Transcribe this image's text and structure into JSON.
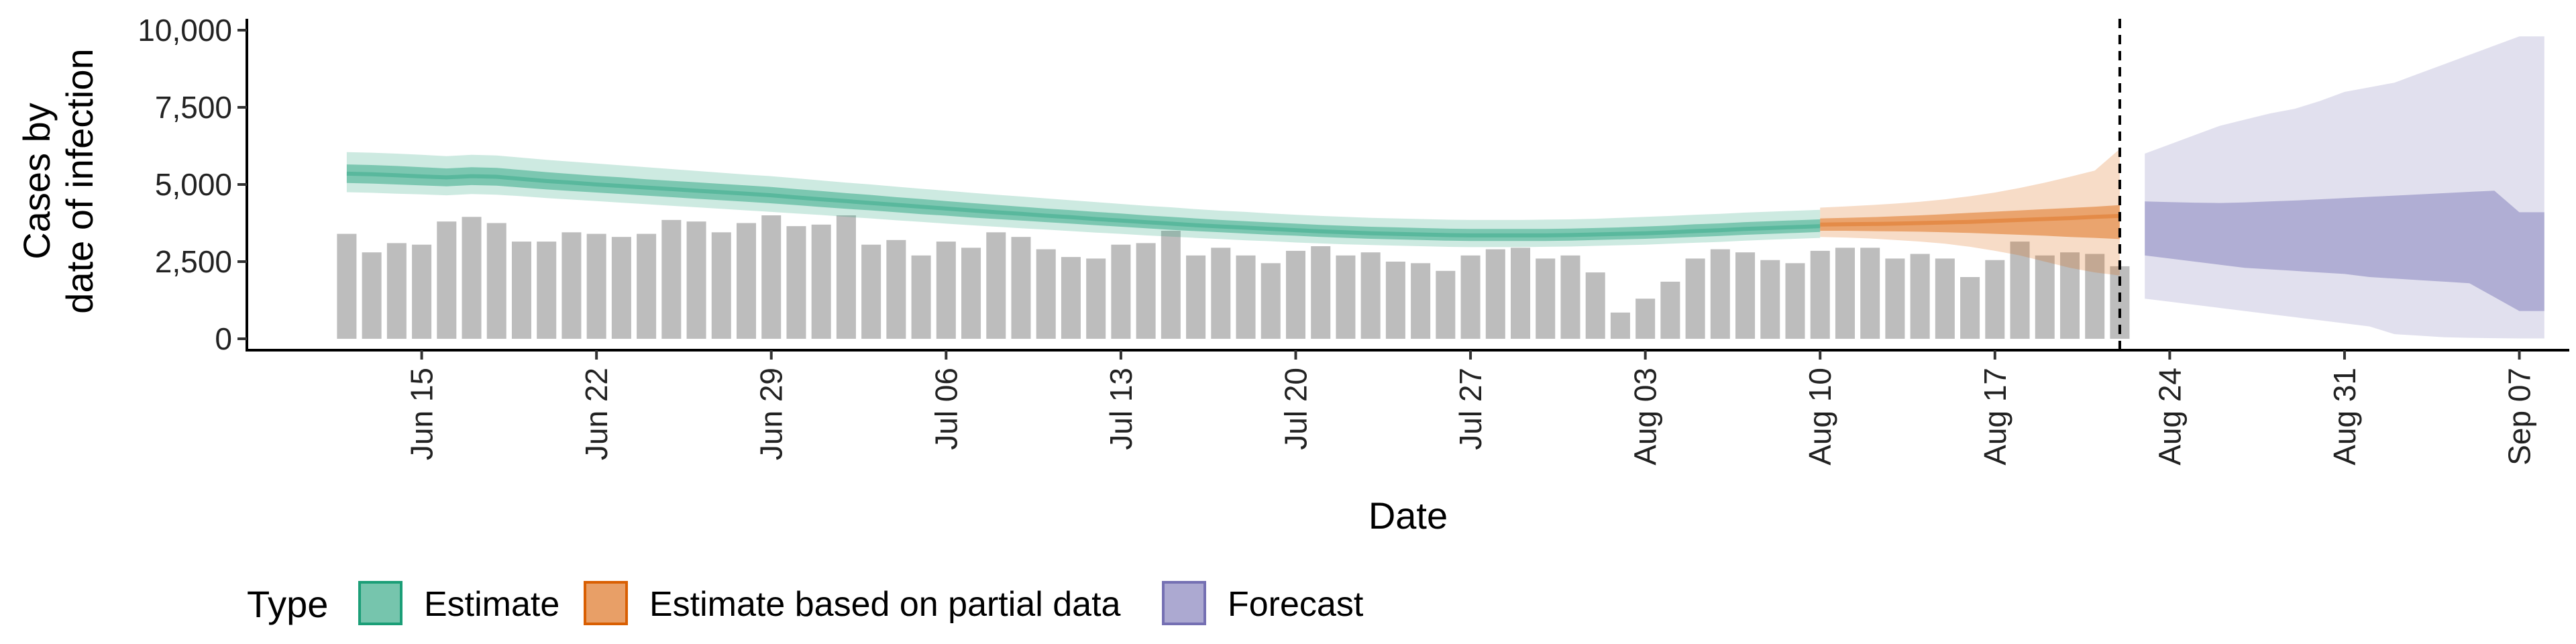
{
  "chart_data": {
    "type": "bar",
    "xlabel": "Date",
    "ylabel_lines": [
      "Cases by",
      "date of infection"
    ],
    "ylim": [
      0,
      10000
    ],
    "x_range": [
      "2020-06-08",
      "2020-09-09"
    ],
    "x_ticks": [
      "2020-06-15",
      "2020-06-22",
      "2020-06-29",
      "2020-07-06",
      "2020-07-13",
      "2020-07-20",
      "2020-07-27",
      "2020-08-03",
      "2020-08-10",
      "2020-08-17",
      "2020-08-24",
      "2020-08-31",
      "2020-09-07"
    ],
    "x_tick_labels": [
      "Jun 15",
      "Jun 22",
      "Jun 29",
      "Jul 06",
      "Jul 13",
      "Jul 20",
      "Jul 27",
      "Aug 03",
      "Aug 10",
      "Aug 17",
      "Aug 24",
      "Aug 31",
      "Sep 07"
    ],
    "y_ticks": [
      0,
      2500,
      5000,
      7500,
      10000
    ],
    "y_tick_labels": [
      "0",
      "2,500",
      "5,000",
      "7,500",
      "10,000"
    ],
    "grid": false,
    "legend_position": "bottom",
    "legend": {
      "title": "Type",
      "items": [
        {
          "label": "Estimate",
          "color": "#1b9e77"
        },
        {
          "label": "Estimate based on partial data",
          "color": "#d95f02"
        },
        {
          "label": "Forecast",
          "color": "#7570b3"
        }
      ]
    },
    "cutoff_date": "2020-08-22",
    "bars": {
      "color": "#bdbdbd",
      "start": "2020-06-12",
      "values": [
        3400,
        2800,
        3100,
        3050,
        3800,
        3950,
        3750,
        3150,
        3150,
        3450,
        3400,
        3300,
        3400,
        3850,
        3800,
        3450,
        3750,
        4000,
        3650,
        3700,
        4000,
        3050,
        3200,
        2700,
        3150,
        2950,
        3450,
        3300,
        2900,
        2650,
        2600,
        3050,
        3100,
        3500,
        2700,
        2950,
        2700,
        2450,
        2850,
        3000,
        2700,
        2800,
        2500,
        2450,
        2200,
        2700,
        2900,
        2950,
        2600,
        2700,
        2150,
        850,
        1300,
        1850,
        2600,
        2900,
        2800,
        2550,
        2450,
        2850,
        2950,
        2950,
        2600,
        2750,
        2600,
        2000,
        2550,
        3150,
        2700,
        2800,
        2750,
        2350
      ]
    },
    "series": [
      {
        "name": "Estimate",
        "start": "2020-06-12",
        "median": [
          5350,
          5330,
          5300,
          5260,
          5230,
          5270,
          5250,
          5180,
          5110,
          5060,
          5000,
          4950,
          4900,
          4850,
          4800,
          4750,
          4700,
          4650,
          4580,
          4520,
          4460,
          4400,
          4340,
          4280,
          4220,
          4160,
          4100,
          4050,
          3990,
          3940,
          3880,
          3830,
          3780,
          3730,
          3680,
          3640,
          3600,
          3560,
          3520,
          3480,
          3450,
          3420,
          3400,
          3380,
          3360,
          3350,
          3350,
          3350,
          3350,
          3360,
          3380,
          3400,
          3420,
          3450,
          3490,
          3520,
          3560,
          3590,
          3620,
          3650
        ],
        "lower50": [
          5050,
          5030,
          5000,
          4970,
          4940,
          4980,
          4960,
          4900,
          4840,
          4790,
          4740,
          4690,
          4640,
          4590,
          4540,
          4490,
          4440,
          4390,
          4330,
          4270,
          4210,
          4160,
          4100,
          4040,
          3990,
          3930,
          3880,
          3830,
          3780,
          3730,
          3680,
          3630,
          3580,
          3530,
          3490,
          3450,
          3410,
          3370,
          3340,
          3300,
          3270,
          3240,
          3220,
          3200,
          3180,
          3170,
          3170,
          3170,
          3170,
          3180,
          3200,
          3220,
          3240,
          3270,
          3300,
          3330,
          3370,
          3400,
          3430,
          3460
        ],
        "upper50": [
          5650,
          5630,
          5600,
          5560,
          5520,
          5560,
          5540,
          5470,
          5400,
          5340,
          5280,
          5230,
          5170,
          5120,
          5070,
          5020,
          4970,
          4920,
          4850,
          4790,
          4720,
          4660,
          4590,
          4530,
          4460,
          4400,
          4340,
          4280,
          4220,
          4170,
          4110,
          4060,
          4000,
          3950,
          3900,
          3850,
          3810,
          3770,
          3730,
          3690,
          3660,
          3630,
          3610,
          3590,
          3570,
          3560,
          3560,
          3560,
          3560,
          3570,
          3590,
          3610,
          3640,
          3670,
          3710,
          3740,
          3780,
          3810,
          3840,
          3870
        ],
        "lower90": [
          4750,
          4730,
          4700,
          4680,
          4650,
          4690,
          4670,
          4620,
          4560,
          4510,
          4460,
          4410,
          4360,
          4310,
          4260,
          4210,
          4160,
          4110,
          4060,
          4010,
          3950,
          3900,
          3840,
          3790,
          3730,
          3680,
          3630,
          3580,
          3540,
          3490,
          3440,
          3400,
          3350,
          3310,
          3270,
          3230,
          3190,
          3160,
          3120,
          3090,
          3060,
          3040,
          3020,
          3000,
          2980,
          2970,
          2970,
          2970,
          2980,
          2990,
          3010,
          3030,
          3050,
          3080,
          3110,
          3140,
          3180,
          3210,
          3240,
          3270
        ],
        "upper90": [
          6050,
          6030,
          6000,
          5960,
          5920,
          5960,
          5940,
          5870,
          5800,
          5740,
          5680,
          5620,
          5560,
          5500,
          5440,
          5380,
          5320,
          5270,
          5200,
          5130,
          5060,
          5000,
          4930,
          4860,
          4800,
          4730,
          4670,
          4610,
          4550,
          4490,
          4430,
          4370,
          4310,
          4260,
          4200,
          4150,
          4110,
          4060,
          4020,
          3980,
          3950,
          3920,
          3900,
          3880,
          3860,
          3850,
          3850,
          3850,
          3860,
          3870,
          3890,
          3920,
          3950,
          3980,
          4020,
          4050,
          4090,
          4120,
          4150,
          4180
        ]
      },
      {
        "name": "Estimate based on partial data",
        "start": "2020-08-10",
        "median": [
          3700,
          3710,
          3720,
          3730,
          3750,
          3770,
          3790,
          3820,
          3850,
          3880,
          3910,
          3950,
          3980
        ],
        "lower50": [
          3500,
          3500,
          3490,
          3480,
          3470,
          3450,
          3430,
          3400,
          3370,
          3340,
          3300,
          3270,
          3230
        ],
        "upper50": [
          3900,
          3920,
          3940,
          3970,
          4000,
          4040,
          4080,
          4120,
          4160,
          4200,
          4240,
          4280,
          4330
        ],
        "lower90": [
          3300,
          3280,
          3250,
          3200,
          3150,
          3080,
          2980,
          2850,
          2700,
          2500,
          2300,
          2150,
          2050
        ],
        "upper90": [
          4250,
          4290,
          4330,
          4380,
          4440,
          4520,
          4620,
          4740,
          4890,
          5060,
          5250,
          5450,
          6150
        ]
      },
      {
        "name": "Forecast",
        "start": "2020-08-23",
        "lower50": [
          2700,
          2600,
          2500,
          2400,
          2300,
          2250,
          2200,
          2150,
          2100,
          2000,
          1950,
          1900,
          1850,
          1800,
          1350,
          900,
          900
        ],
        "upper50": [
          4450,
          4430,
          4410,
          4400,
          4420,
          4450,
          4480,
          4520,
          4560,
          4600,
          4640,
          4680,
          4720,
          4760,
          4800,
          4100,
          4100
        ],
        "lower90": [
          1300,
          1200,
          1100,
          1000,
          900,
          800,
          700,
          600,
          500,
          400,
          150,
          100,
          50,
          30,
          20,
          10,
          10
        ],
        "upper90": [
          6000,
          6300,
          6600,
          6900,
          7100,
          7300,
          7450,
          7700,
          8000,
          8150,
          8300,
          8600,
          8900,
          9200,
          9500,
          9800,
          9800
        ]
      }
    ]
  }
}
